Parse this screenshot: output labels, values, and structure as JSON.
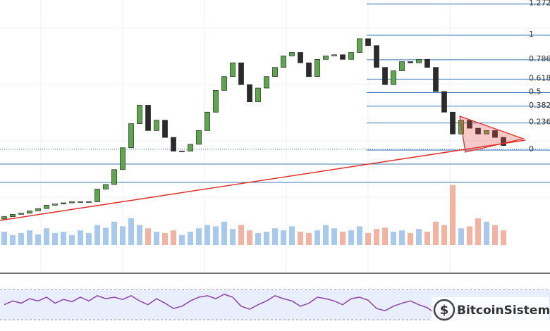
{
  "chart_data": {
    "type": "candlestick",
    "ylim": [
      -0.84,
      1.307
    ],
    "yticks": [
      1.272,
      1,
      0.786,
      0.618,
      0.5,
      0.382,
      0.236,
      0
    ],
    "up_color": "#5aa84a",
    "down_color": "#2b2b2b",
    "open": [
      -0.6,
      -0.58,
      -0.56,
      -0.55,
      -0.53,
      -0.51,
      -0.48,
      -0.47,
      -0.46,
      -0.45,
      -0.45,
      -0.45,
      -0.34,
      -0.3,
      -0.17,
      0.02,
      0.23,
      0.39,
      0.17,
      0.26,
      0.11,
      -0.01,
      -0.01,
      0.05,
      0.17,
      0.33,
      0.52,
      0.64,
      0.76,
      0.57,
      0.42,
      0.54,
      0.64,
      0.72,
      0.82,
      0.85,
      0.76,
      0.64,
      0.79,
      0.82,
      0.83,
      0.79,
      0.85,
      0.97,
      0.91,
      0.72,
      0.57,
      0.69,
      0.77,
      0.76,
      0.79,
      0.72,
      0.51,
      0.33,
      0.14,
      0.26,
      0.19,
      0.14,
      0.17,
      0.11
    ],
    "close": [
      -0.58,
      -0.56,
      -0.55,
      -0.53,
      -0.51,
      -0.48,
      -0.47,
      -0.46,
      -0.45,
      -0.45,
      -0.45,
      -0.34,
      -0.3,
      -0.17,
      0.02,
      0.23,
      0.39,
      0.17,
      0.26,
      0.11,
      -0.01,
      -0.01,
      0.05,
      0.17,
      0.33,
      0.52,
      0.64,
      0.76,
      0.57,
      0.42,
      0.54,
      0.64,
      0.72,
      0.82,
      0.85,
      0.76,
      0.64,
      0.79,
      0.82,
      0.83,
      0.79,
      0.85,
      0.97,
      0.91,
      0.72,
      0.57,
      0.69,
      0.77,
      0.76,
      0.79,
      0.72,
      0.51,
      0.33,
      0.14,
      0.26,
      0.19,
      0.14,
      0.17,
      0.11,
      0.04
    ],
    "volume": {
      "ylim": [
        0,
        100
      ],
      "up_color": "#a9c9ec",
      "down_color": "#f2b3a3",
      "values": [
        20,
        15,
        18,
        22,
        16,
        25,
        18,
        20,
        15,
        22,
        18,
        30,
        26,
        35,
        28,
        40,
        30,
        25,
        20,
        18,
        22,
        15,
        20,
        25,
        30,
        28,
        35,
        24,
        30,
        22,
        18,
        20,
        25,
        22,
        28,
        20,
        18,
        22,
        30,
        25,
        20,
        22,
        28,
        18,
        24,
        26,
        20,
        22,
        18,
        24,
        20,
        35,
        30,
        90,
        25,
        28,
        40,
        35,
        30,
        22
      ]
    },
    "rsi": {
      "ylim": [
        15,
        90
      ],
      "yticks": [
        30,
        70
      ],
      "color": "#8e44ad",
      "values": [
        50,
        55,
        52,
        58,
        55,
        60,
        52,
        57,
        54,
        60,
        55,
        62,
        58,
        60,
        57,
        62,
        55,
        50,
        58,
        52,
        45,
        48,
        55,
        60,
        62,
        58,
        64,
        60,
        48,
        44,
        50,
        55,
        62,
        58,
        55,
        48,
        52,
        60,
        58,
        55,
        50,
        58,
        60,
        56,
        45,
        42,
        48,
        52,
        55,
        50,
        46,
        38,
        32,
        40,
        36,
        42,
        45,
        40,
        44,
        38
      ]
    }
  },
  "watermark": "BitcoinSistemi"
}
